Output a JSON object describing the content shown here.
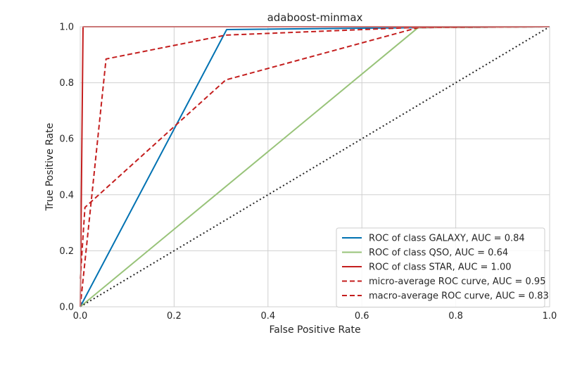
{
  "chart_data": {
    "type": "line",
    "title": "adaboost-minmax",
    "xlabel": "False Positive Rate",
    "ylabel": "True Positive Rate",
    "xlim": [
      0.0,
      1.0
    ],
    "ylim": [
      0.0,
      1.0
    ],
    "xticks": [
      "0.0",
      "0.2",
      "0.4",
      "0.6",
      "0.8",
      "1.0"
    ],
    "yticks": [
      "0.0",
      "0.2",
      "0.4",
      "0.6",
      "0.8",
      "1.0"
    ],
    "grid": true,
    "legend_position": "lower-right",
    "series": [
      {
        "name": "ROC of class GALAXY, AUC = 0.84",
        "color": "#0072b2",
        "dash": "solid",
        "x": [
          0.0,
          0.312,
          0.72,
          1.0
        ],
        "y": [
          0.0,
          0.99,
          0.997,
          1.0
        ]
      },
      {
        "name": "ROC of class QSO, AUC = 0.64",
        "color": "#98c379",
        "dash": "solid",
        "x": [
          0.0,
          0.72,
          1.0
        ],
        "y": [
          0.0,
          0.997,
          1.0
        ]
      },
      {
        "name": "ROC of class STAR, AUC = 1.00",
        "color": "#c41e1e",
        "dash": "solid",
        "x": [
          0.0,
          0.006,
          1.0
        ],
        "y": [
          0.0,
          1.0,
          1.0
        ]
      },
      {
        "name": "micro-average ROC curve, AUC = 0.95",
        "color": "#c41e1e",
        "dash": "dashed",
        "x": [
          0.0,
          0.055,
          0.31,
          0.72,
          1.0
        ],
        "y": [
          0.0,
          0.885,
          0.97,
          0.998,
          1.0
        ]
      },
      {
        "name": "macro-average ROC curve, AUC = 0.83",
        "color": "#c41e1e",
        "dash": "dashed",
        "x": [
          0.0,
          0.01,
          0.31,
          0.72,
          1.0
        ],
        "y": [
          0.1,
          0.355,
          0.81,
          0.997,
          1.0
        ]
      },
      {
        "name": "",
        "color": "#262626",
        "dash": "dotted",
        "x": [
          0.0,
          1.0
        ],
        "y": [
          0.0,
          1.0
        ],
        "in_legend": false
      }
    ]
  }
}
